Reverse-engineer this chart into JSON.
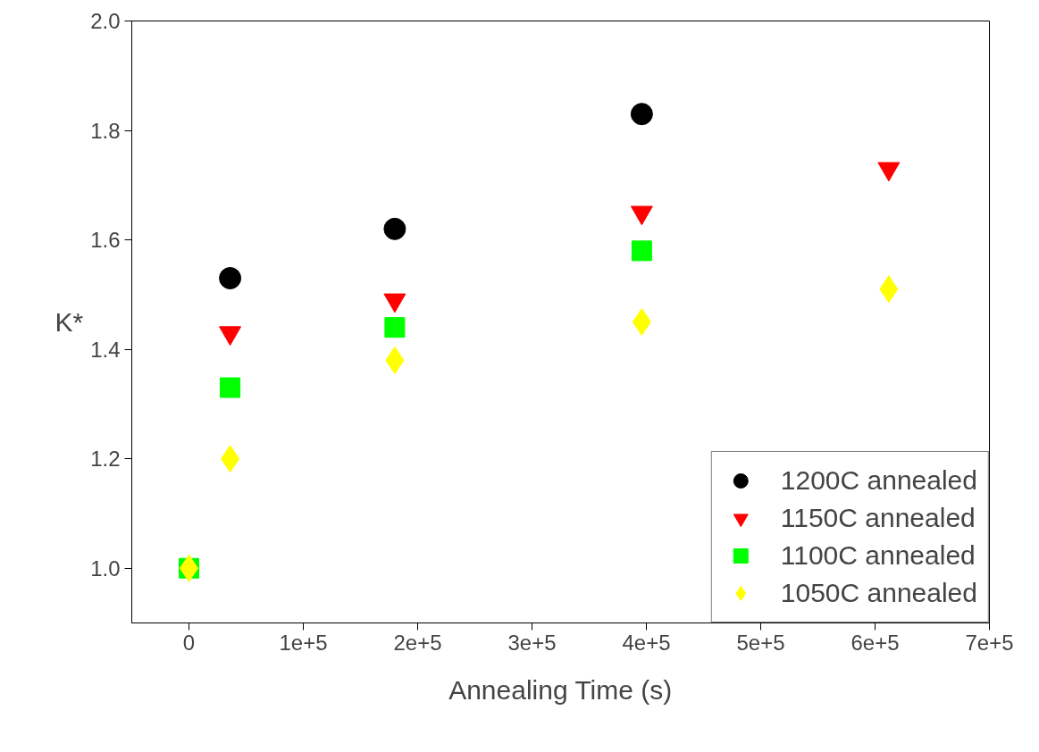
{
  "chart_data": {
    "type": "scatter",
    "xlabel": "Annealing Time (s)",
    "ylabel": "K*",
    "xlim": [
      -50000,
      700000
    ],
    "ylim": [
      0.9,
      2.0
    ],
    "xticks": [
      0,
      {
        "value": 100000,
        "label": "1e+5"
      },
      {
        "value": 200000,
        "label": "2e+5"
      },
      {
        "value": 300000,
        "label": "3e+5"
      },
      {
        "value": 400000,
        "label": "4e+5"
      },
      {
        "value": 500000,
        "label": "5e+5"
      },
      {
        "value": 600000,
        "label": "6e+5"
      },
      {
        "value": 700000,
        "label": "7e+5"
      }
    ],
    "yticks": [
      {
        "value": 1,
        "label": "1.0"
      },
      1.2,
      1.4,
      1.6,
      1.8,
      {
        "value": 2,
        "label": "2.0"
      }
    ],
    "grid": false,
    "legend": "bottom right",
    "series": [
      {
        "name": "1200C annealed",
        "color": "#000000",
        "marker": "circle",
        "x": [
          36000,
          180000,
          396000
        ],
        "values": [
          1.53,
          1.62,
          1.83
        ]
      },
      {
        "name": "1150C annealed",
        "color": "#ff0000",
        "marker": "triangle",
        "x": [
          36000,
          180000,
          396000,
          612000
        ],
        "values": [
          1.43,
          1.49,
          1.65,
          1.73
        ]
      },
      {
        "name": "1100C annealed",
        "color": "#00ff00",
        "marker": "square",
        "x": [
          0,
          36000,
          180000,
          396000
        ],
        "values": [
          1.0,
          1.33,
          1.44,
          1.58
        ]
      },
      {
        "name": "1050C annealed",
        "color": "#ffff00",
        "marker": "diamond",
        "x": [
          0,
          36000,
          180000,
          396000,
          612000
        ],
        "values": [
          1.0,
          1.2,
          1.38,
          1.45,
          1.51
        ]
      }
    ]
  }
}
